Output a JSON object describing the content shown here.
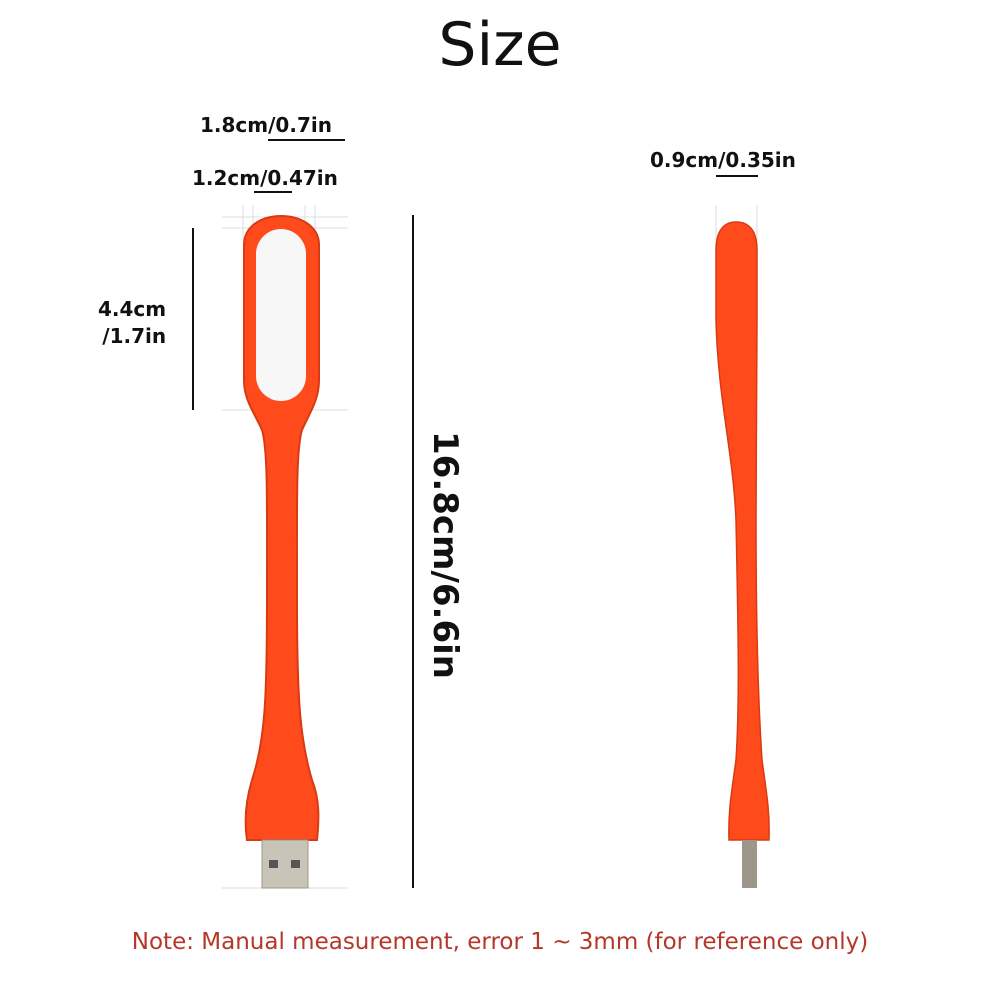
{
  "title": "Size",
  "dimensions": {
    "outer_width": "1.8cm/0.7in",
    "inner_width": "1.2cm/0.47in",
    "head_height_line1": "4.4cm",
    "head_height_line2": "/1.7in",
    "total_length": "16.8cm/6.6in",
    "thickness": "0.9cm/0.35in"
  },
  "note": "Note: Manual measurement, error 1 ~ 3mm (for reference only)",
  "colors": {
    "lamp": "#ff4a1c",
    "note": "#b5372a",
    "usb": "#c9c4b8"
  }
}
